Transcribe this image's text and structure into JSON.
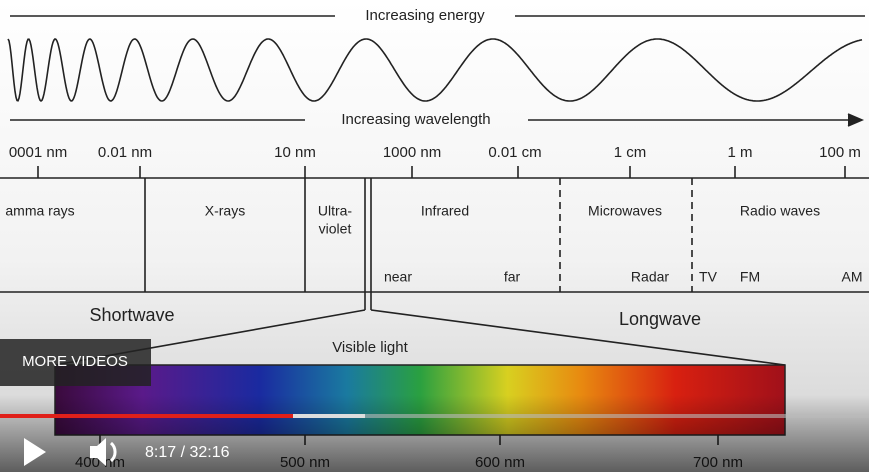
{
  "diagram": {
    "energy_label": "Increasing energy",
    "wavelength_label": "Increasing wavelength",
    "scale_labels": [
      "0001 nm",
      "0.01 nm",
      "10 nm",
      "1000 nm",
      "0.01 cm",
      "1 cm",
      "1 m",
      "100 m"
    ],
    "regions": [
      "amma rays",
      "X-rays",
      "Ultra-",
      "violet",
      "Infrared",
      "Microwaves",
      "Radio waves"
    ],
    "sub_labels": [
      "near",
      "far",
      "Radar",
      "TV",
      "FM",
      "AM"
    ],
    "shortwave": "Shortwave",
    "longwave": "Longwave",
    "visible_label": "Visible light",
    "visible_scale": [
      "400 nm",
      "500 nm",
      "600 nm",
      "700 nm"
    ]
  },
  "player": {
    "more_videos": "MORE VIDEOS",
    "time": "8:17 / 32:16"
  }
}
